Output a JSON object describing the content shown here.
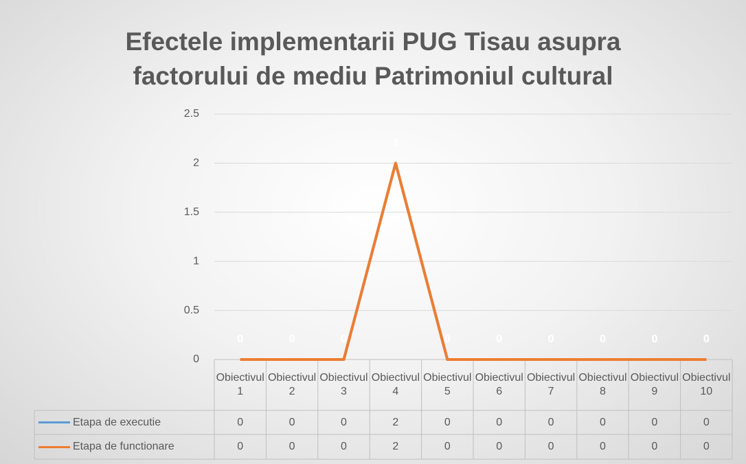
{
  "chart_data": {
    "type": "line",
    "title": "Efectele implementarii PUG Tisau asupra factorului de mediu Patrimoniul cultural",
    "categories": [
      "Obiectivul 1",
      "Obiectivul 2",
      "Obiectivul 3",
      "Obiectivul 4",
      "Obiectivul 5",
      "Obiectivul 6",
      "Obiectivul 7",
      "Obiectivul 8",
      "Obiectivul 9",
      "Obiectivul 10"
    ],
    "series": [
      {
        "name": "Etapa de executie",
        "color": "#5b9bd5",
        "values": [
          0,
          0,
          0,
          2,
          0,
          0,
          0,
          0,
          0,
          0
        ]
      },
      {
        "name": "Etapa de functionare",
        "color": "#ed7d31",
        "values": [
          0,
          0,
          0,
          2,
          0,
          0,
          0,
          0,
          0,
          0
        ]
      }
    ],
    "ylim": [
      0,
      2.5
    ],
    "yticks": [
      0,
      0.5,
      1,
      1.5,
      2,
      2.5
    ],
    "grid": true
  }
}
